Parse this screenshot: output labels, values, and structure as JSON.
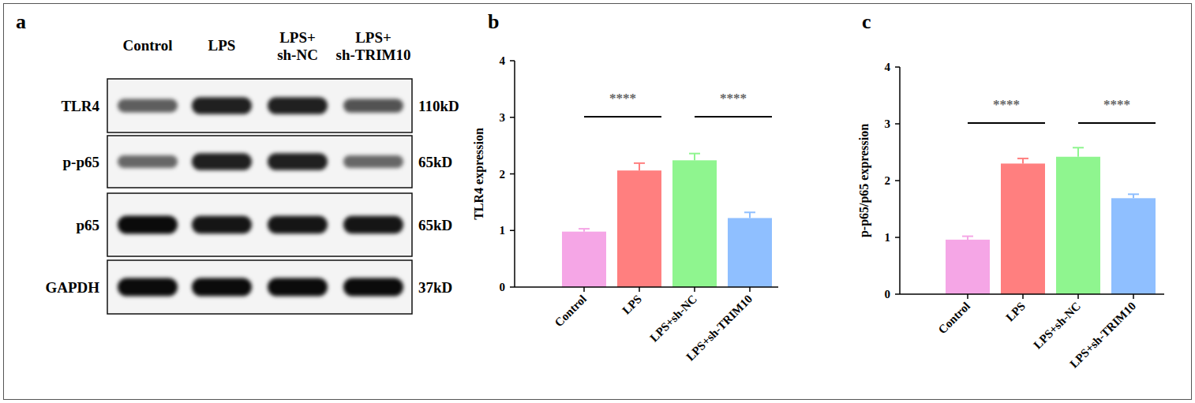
{
  "chart_data": [
    {
      "type": "bar",
      "panel_label": "b",
      "y_label": "TLR4 expression",
      "categories": [
        "Control",
        "LPS",
        "LPS+sh-NC",
        "LPS+sh-TRIM10"
      ],
      "values": [
        0.98,
        2.06,
        2.24,
        1.22
      ],
      "errors": [
        0.05,
        0.13,
        0.12,
        0.1
      ],
      "colors": [
        "#f5a6e6",
        "#ff7f7f",
        "#8ff58f",
        "#8fbfff"
      ],
      "ylim": [
        0,
        4
      ],
      "yticks": [
        0,
        1,
        2,
        3,
        4
      ],
      "grid": false,
      "annotations": [
        {
          "text": "****",
          "from": 0,
          "to": 1
        },
        {
          "text": "****",
          "from": 2,
          "to": 3
        }
      ]
    },
    {
      "type": "bar",
      "panel_label": "c",
      "y_label": "p-p65/p65 expression",
      "categories": [
        "Control",
        "LPS",
        "LPS+sh-NC",
        "LPS+sh-TRIM10"
      ],
      "values": [
        0.96,
        2.3,
        2.42,
        1.69
      ],
      "errors": [
        0.06,
        0.09,
        0.16,
        0.07
      ],
      "colors": [
        "#f5a6e6",
        "#ff7f7f",
        "#8ff58f",
        "#8fbfff"
      ],
      "ylim": [
        0,
        4
      ],
      "yticks": [
        0,
        1,
        2,
        3,
        4
      ],
      "grid": false,
      "annotations": [
        {
          "text": "****",
          "from": 0,
          "to": 1
        },
        {
          "text": "****",
          "from": 2,
          "to": 3
        }
      ]
    }
  ],
  "blot": {
    "panel_label": "a",
    "lanes": [
      "Control",
      "LPS",
      "LPS+\nsh-NC",
      "LPS+\nsh-TRIM10"
    ],
    "rows": [
      {
        "protein": "TLR4",
        "size": "110kD",
        "band_intensity": [
          0.55,
          0.85,
          0.85,
          0.6
        ]
      },
      {
        "protein": "p-p65",
        "size": "65kD",
        "band_intensity": [
          0.5,
          0.85,
          0.85,
          0.5
        ]
      },
      {
        "protein": "p65",
        "size": "65kD",
        "band_intensity": [
          0.95,
          0.9,
          0.9,
          0.9
        ]
      },
      {
        "protein": "GAPDH",
        "size": "37kD",
        "band_intensity": [
          0.95,
          0.95,
          0.95,
          0.95
        ]
      }
    ]
  }
}
